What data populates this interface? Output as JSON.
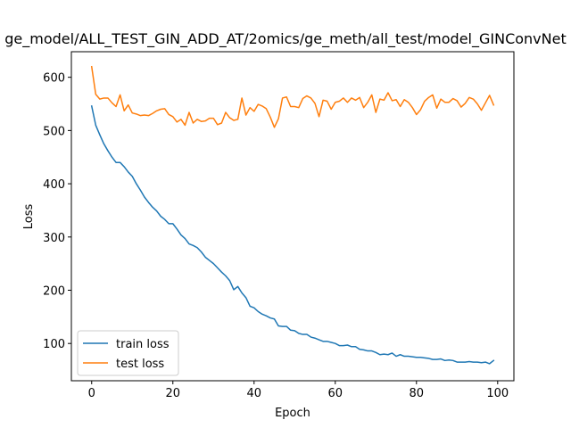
{
  "chart_data": {
    "type": "line",
    "title": "ge_model/ALL_TEST_GIN_ADD_AT/2omics/ge_meth/all_test/model_GINConvNet",
    "xlabel": "Epoch",
    "ylabel": "Loss",
    "xlim": [
      -5,
      104
    ],
    "ylim": [
      30,
      648
    ],
    "xticks": [
      0,
      20,
      40,
      60,
      80,
      100
    ],
    "yticks": [
      100,
      200,
      300,
      400,
      500,
      600
    ],
    "grid": false,
    "legend_position": "lower-left",
    "series": [
      {
        "name": "train loss",
        "color": "#1f77b4",
        "values": [
          546,
          510,
          492,
          475,
          462,
          450,
          440,
          440,
          432,
          422,
          414,
          400,
          388,
          375,
          365,
          356,
          349,
          339,
          333,
          325,
          325,
          315,
          304,
          297,
          287,
          284,
          280,
          272,
          262,
          256,
          250,
          242,
          234,
          227,
          218,
          201,
          207,
          195,
          186,
          170,
          167,
          160,
          155,
          152,
          148,
          146,
          133,
          132,
          132,
          125,
          124,
          119,
          117,
          117,
          112,
          110,
          107,
          104,
          104,
          102,
          100,
          96,
          96,
          97,
          94,
          94,
          89,
          88,
          86,
          86,
          83,
          79,
          80,
          79,
          82,
          76,
          79,
          76,
          76,
          75,
          74,
          74,
          73,
          72,
          70,
          70,
          71,
          68,
          69,
          68,
          65,
          65,
          65,
          66,
          65,
          65,
          64,
          65,
          62,
          68
        ]
      },
      {
        "name": "test loss",
        "color": "#ff7f0e",
        "values": [
          620,
          568,
          559,
          561,
          561,
          552,
          545,
          567,
          537,
          548,
          533,
          531,
          528,
          529,
          528,
          532,
          537,
          540,
          541,
          530,
          526,
          516,
          521,
          510,
          534,
          514,
          521,
          517,
          518,
          523,
          523,
          511,
          514,
          534,
          524,
          519,
          521,
          561,
          529,
          543,
          536,
          549,
          546,
          541,
          525,
          506,
          522,
          561,
          563,
          545,
          545,
          543,
          560,
          565,
          561,
          551,
          526,
          557,
          555,
          540,
          553,
          555,
          561,
          553,
          561,
          557,
          562,
          543,
          553,
          567,
          534,
          559,
          557,
          571,
          556,
          558,
          545,
          558,
          553,
          543,
          530,
          539,
          555,
          562,
          567,
          542,
          559,
          553,
          553,
          560,
          556,
          544,
          551,
          562,
          559,
          550,
          538,
          552,
          566,
          548
        ]
      }
    ]
  }
}
